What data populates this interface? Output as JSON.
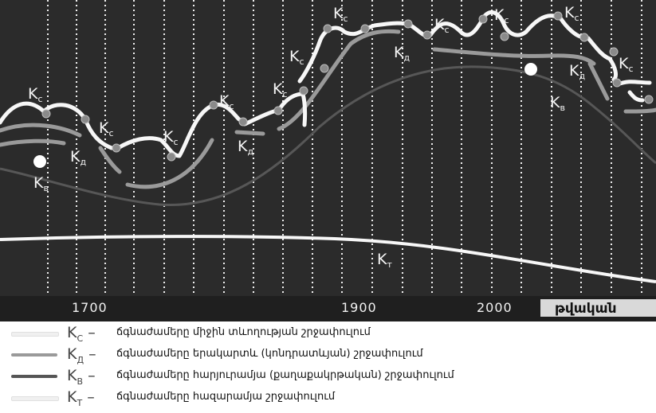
{
  "axis": {
    "ticks": [
      "1700",
      "1900",
      "2000"
    ],
    "unit": "թվական"
  },
  "labels": {
    "k_main": "K",
    "c": "c",
    "d": "д",
    "b": "в",
    "t": "т"
  },
  "legend": [
    {
      "symbol": "K",
      "sub": "C",
      "dash": "–",
      "text": "ճգնաժամերը միջին տևողության շրջափուլում",
      "color": "#f4f4f4"
    },
    {
      "symbol": "K",
      "sub": "Д",
      "dash": "–",
      "text": "ճգնաժամերը երակարտև (կոնդրատևյան) շրջափուլում",
      "color": "#9a9a9a"
    },
    {
      "symbol": "K",
      "sub": "B",
      "dash": "–",
      "text": "ճգնաժամերը հարյուրամյա (քաղաքակրթական) շրջափուլում",
      "color": "#555555"
    },
    {
      "symbol": "K",
      "sub": "T",
      "dash": "–",
      "text": "ճգնաժամերը հազարամյա շրջափուլում",
      "color": "#f4f4f4"
    }
  ],
  "colors": {
    "background": "#2b2b2b",
    "axis_band": "#1f1f1f",
    "grid": "#f0f0f0",
    "short_wave": "#f7f7f7",
    "long_wave": "#9a9a9a",
    "century_wave": "#575757",
    "millennium_wave": "#f7f7f7"
  }
}
